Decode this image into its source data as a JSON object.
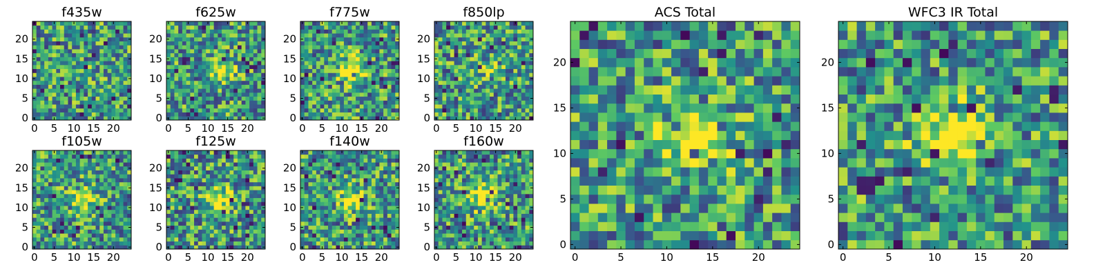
{
  "figure": {
    "colormap": [
      "#440154",
      "#3b528b",
      "#21918c",
      "#5ec962",
      "#fde725"
    ]
  },
  "chart_data": [
    {
      "type": "heatmap",
      "title": "f435w",
      "grid_size": 25,
      "seed": 11,
      "blob": 0.05,
      "center": [
        13,
        12
      ],
      "xlim": [
        0,
        24
      ],
      "ylim": [
        0,
        24
      ],
      "xticks": [
        0,
        5,
        10,
        15,
        20
      ],
      "yticks": [
        0,
        5,
        10,
        15,
        20
      ],
      "xtick_labels": [
        "0",
        "5",
        "10",
        "15",
        "20"
      ],
      "ytick_labels": [
        "0",
        "5",
        "10",
        "15",
        "20"
      ]
    },
    {
      "type": "heatmap",
      "title": "f625w",
      "grid_size": 25,
      "seed": 23,
      "blob": 0.45,
      "center": [
        13,
        12
      ],
      "xlim": [
        0,
        24
      ],
      "ylim": [
        0,
        24
      ],
      "xticks": [
        0,
        5,
        10,
        15,
        20
      ],
      "yticks": [
        0,
        5,
        10,
        15,
        20
      ],
      "xtick_labels": [
        "0",
        "5",
        "10",
        "15",
        "20"
      ],
      "ytick_labels": [
        "0",
        "5",
        "10",
        "15",
        "20"
      ]
    },
    {
      "type": "heatmap",
      "title": "f775w",
      "grid_size": 25,
      "seed": 37,
      "blob": 0.55,
      "center": [
        13,
        12
      ],
      "xlim": [
        0,
        24
      ],
      "ylim": [
        0,
        24
      ],
      "xticks": [
        0,
        5,
        10,
        15,
        20
      ],
      "yticks": [
        0,
        5,
        10,
        15,
        20
      ],
      "xtick_labels": [
        "0",
        "5",
        "10",
        "15",
        "20"
      ],
      "ytick_labels": [
        "0",
        "5",
        "10",
        "15",
        "20"
      ]
    },
    {
      "type": "heatmap",
      "title": "f850lp",
      "grid_size": 25,
      "seed": 41,
      "blob": 0.2,
      "center": [
        13,
        12
      ],
      "xlim": [
        0,
        24
      ],
      "ylim": [
        0,
        24
      ],
      "xticks": [
        0,
        5,
        10,
        15,
        20
      ],
      "yticks": [
        0,
        5,
        10,
        15,
        20
      ],
      "xtick_labels": [
        "0",
        "5",
        "10",
        "15",
        "20"
      ],
      "ytick_labels": [
        "0",
        "5",
        "10",
        "15",
        "20"
      ]
    },
    {
      "type": "heatmap",
      "title": "f105w",
      "grid_size": 25,
      "seed": 53,
      "blob": 0.5,
      "center": [
        12,
        12
      ],
      "xlim": [
        0,
        24
      ],
      "ylim": [
        0,
        24
      ],
      "xticks": [
        0,
        5,
        10,
        15,
        20
      ],
      "yticks": [
        0,
        5,
        10,
        15,
        20
      ],
      "xtick_labels": [
        "0",
        "5",
        "10",
        "15",
        "20"
      ],
      "ytick_labels": [
        "0",
        "5",
        "10",
        "15",
        "20"
      ]
    },
    {
      "type": "heatmap",
      "title": "f125w",
      "grid_size": 25,
      "seed": 67,
      "blob": 0.45,
      "center": [
        13,
        12
      ],
      "xlim": [
        0,
        24
      ],
      "ylim": [
        0,
        24
      ],
      "xticks": [
        0,
        5,
        10,
        15,
        20
      ],
      "yticks": [
        0,
        5,
        10,
        15,
        20
      ],
      "xtick_labels": [
        "0",
        "5",
        "10",
        "15",
        "20"
      ],
      "ytick_labels": [
        "0",
        "5",
        "10",
        "15",
        "20"
      ]
    },
    {
      "type": "heatmap",
      "title": "f140w",
      "grid_size": 25,
      "seed": 79,
      "blob": 0.35,
      "center": [
        12,
        12
      ],
      "xlim": [
        0,
        24
      ],
      "ylim": [
        0,
        24
      ],
      "xticks": [
        0,
        5,
        10,
        15,
        20
      ],
      "yticks": [
        0,
        5,
        10,
        15,
        20
      ],
      "xtick_labels": [
        "0",
        "5",
        "10",
        "15",
        "20"
      ],
      "ytick_labels": [
        "0",
        "5",
        "10",
        "15",
        "20"
      ]
    },
    {
      "type": "heatmap",
      "title": "f160w",
      "grid_size": 25,
      "seed": 83,
      "blob": 0.6,
      "center": [
        12,
        13
      ],
      "xlim": [
        0,
        24
      ],
      "ylim": [
        0,
        24
      ],
      "xticks": [
        0,
        5,
        10,
        15,
        20
      ],
      "yticks": [
        0,
        5,
        10,
        15,
        20
      ],
      "xtick_labels": [
        "0",
        "5",
        "10",
        "15",
        "20"
      ],
      "ytick_labels": [
        "0",
        "5",
        "10",
        "15",
        "20"
      ]
    },
    {
      "type": "heatmap",
      "title": "ACS Total",
      "grid_size": 25,
      "seed": 97,
      "blob": 0.7,
      "center": [
        13,
        12
      ],
      "xlim": [
        0,
        24
      ],
      "ylim": [
        0,
        24
      ],
      "xticks": [
        0,
        5,
        10,
        15,
        20
      ],
      "yticks": [
        0,
        5,
        10,
        15,
        20
      ],
      "xtick_labels": [
        "0",
        "5",
        "10",
        "15",
        "20"
      ],
      "ytick_labels": [
        "0",
        "5",
        "10",
        "15",
        "20"
      ]
    },
    {
      "type": "heatmap",
      "title": "WFC3 IR Total",
      "grid_size": 25,
      "seed": 101,
      "blob": 0.75,
      "center": [
        12,
        12
      ],
      "xlim": [
        0,
        24
      ],
      "ylim": [
        0,
        24
      ],
      "xticks": [
        0,
        5,
        10,
        15,
        20
      ],
      "yticks": [
        0,
        5,
        10,
        15,
        20
      ],
      "xtick_labels": [
        "0",
        "5",
        "10",
        "15",
        "20"
      ],
      "ytick_labels": [
        "0",
        "5",
        "10",
        "15",
        "20"
      ]
    }
  ]
}
